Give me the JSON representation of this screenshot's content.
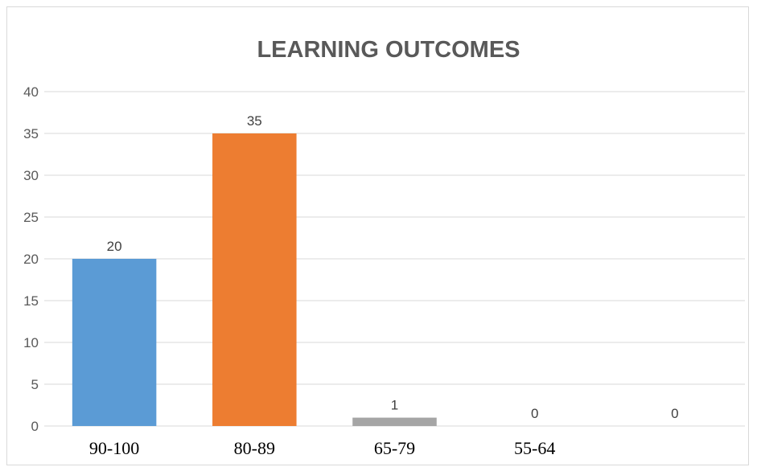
{
  "chart_data": {
    "type": "bar",
    "title": "LEARNING OUTCOMES",
    "categories": [
      "90-100",
      "80-89",
      "65-79",
      "55-64",
      ""
    ],
    "values": [
      20,
      35,
      1,
      0,
      0
    ],
    "colors": [
      "#5b9bd5",
      "#ed7d31",
      "#a5a5a5",
      "#ffc000",
      "#4472c4"
    ],
    "ylim": [
      0,
      40
    ],
    "yticks": [
      0,
      5,
      10,
      15,
      20,
      25,
      30,
      35,
      40
    ],
    "grid": true,
    "legend": "none"
  }
}
